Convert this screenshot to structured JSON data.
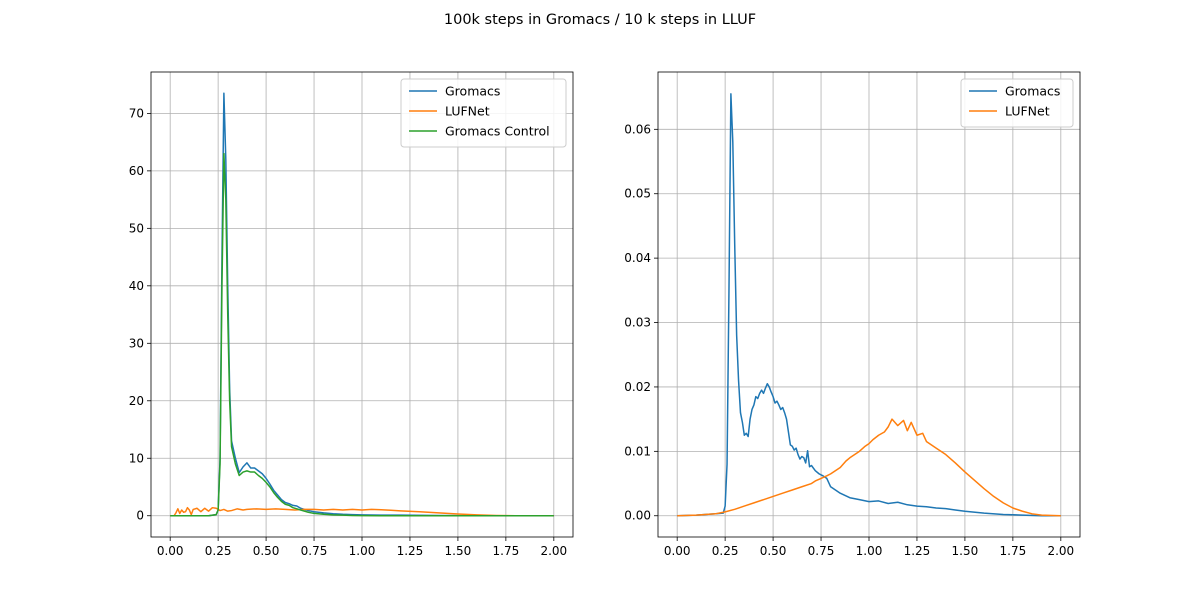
{
  "figure": {
    "title": "100k steps in Gromacs / 10 k steps in LLUF"
  },
  "chart_data": [
    {
      "type": "line",
      "title": "",
      "xlabel": "",
      "ylabel": "",
      "xlim": [
        -0.1,
        2.1
      ],
      "ylim": [
        -3.7,
        77.2
      ],
      "xticks": [
        0.0,
        0.25,
        0.5,
        0.75,
        1.0,
        1.25,
        1.5,
        1.75,
        2.0
      ],
      "xtick_labels": [
        "0.00",
        "0.25",
        "0.50",
        "0.75",
        "1.00",
        "1.25",
        "1.50",
        "1.75",
        "2.00"
      ],
      "yticks": [
        0,
        10,
        20,
        30,
        40,
        50,
        60,
        70
      ],
      "ytick_labels": [
        "0",
        "10",
        "20",
        "30",
        "40",
        "50",
        "60",
        "70"
      ],
      "grid": true,
      "legend_position": "top-right",
      "series": [
        {
          "name": "Gromacs",
          "color": "#1f77b4",
          "x": [
            0.0,
            0.1,
            0.2,
            0.24,
            0.25,
            0.26,
            0.27,
            0.28,
            0.29,
            0.3,
            0.31,
            0.32,
            0.34,
            0.36,
            0.38,
            0.4,
            0.42,
            0.44,
            0.46,
            0.48,
            0.5,
            0.52,
            0.54,
            0.56,
            0.58,
            0.6,
            0.62,
            0.64,
            0.66,
            0.68,
            0.7,
            0.72,
            0.75,
            0.8,
            0.85,
            0.9,
            0.95,
            1.0,
            1.1,
            1.2,
            1.4,
            1.6,
            1.8,
            2.0
          ],
          "y": [
            0,
            0,
            0,
            0.2,
            1.0,
            10.0,
            45.0,
            73.5,
            62.0,
            40.0,
            22.0,
            13.0,
            10.0,
            7.5,
            8.5,
            9.2,
            8.3,
            8.3,
            7.8,
            7.3,
            6.5,
            5.5,
            4.4,
            3.6,
            2.8,
            2.3,
            2.1,
            1.8,
            1.7,
            1.3,
            1.1,
            0.9,
            0.7,
            0.5,
            0.35,
            0.25,
            0.2,
            0.15,
            0.1,
            0.1,
            0.05,
            0.0,
            0.0,
            0.0
          ]
        },
        {
          "name": "LUFNet",
          "color": "#ff7f0e",
          "x": [
            0.0,
            0.02,
            0.03,
            0.04,
            0.05,
            0.06,
            0.07,
            0.08,
            0.09,
            0.1,
            0.11,
            0.12,
            0.14,
            0.16,
            0.18,
            0.2,
            0.22,
            0.24,
            0.26,
            0.28,
            0.3,
            0.32,
            0.35,
            0.38,
            0.4,
            0.45,
            0.5,
            0.55,
            0.6,
            0.65,
            0.7,
            0.75,
            0.8,
            0.85,
            0.9,
            0.95,
            1.0,
            1.05,
            1.1,
            1.15,
            1.2,
            1.3,
            1.4,
            1.5,
            1.6,
            1.7,
            1.8,
            1.9,
            2.0
          ],
          "y": [
            0,
            0,
            0.5,
            1.2,
            0.4,
            1.0,
            0.6,
            0.7,
            1.4,
            1.0,
            0.2,
            1.1,
            1.3,
            0.7,
            1.3,
            0.8,
            1.4,
            1.3,
            0.9,
            1.1,
            0.8,
            0.9,
            1.2,
            1.0,
            1.1,
            1.2,
            1.1,
            1.2,
            1.1,
            1.0,
            1.1,
            1.1,
            1.0,
            1.1,
            1.0,
            1.1,
            1.0,
            1.1,
            1.05,
            0.95,
            0.85,
            0.7,
            0.5,
            0.3,
            0.15,
            0.05,
            0.0,
            0.0,
            0.0
          ]
        },
        {
          "name": "Gromacs Control",
          "color": "#2ca02c",
          "x": [
            0.0,
            0.1,
            0.2,
            0.24,
            0.25,
            0.26,
            0.27,
            0.28,
            0.29,
            0.3,
            0.31,
            0.32,
            0.34,
            0.36,
            0.38,
            0.4,
            0.42,
            0.44,
            0.46,
            0.48,
            0.5,
            0.52,
            0.54,
            0.56,
            0.58,
            0.6,
            0.62,
            0.64,
            0.66,
            0.68,
            0.7,
            0.72,
            0.75,
            0.8,
            0.85,
            0.9,
            0.95,
            1.0,
            1.1,
            1.2,
            1.4,
            1.6,
            1.8,
            2.0
          ],
          "y": [
            0,
            0,
            0,
            0.2,
            1.0,
            9.0,
            40.0,
            63.0,
            55.0,
            35.0,
            20.0,
            12.0,
            9.0,
            7.0,
            7.6,
            7.8,
            7.6,
            7.6,
            7.0,
            6.5,
            5.8,
            5.0,
            4.0,
            3.2,
            2.5,
            2.0,
            1.8,
            1.4,
            1.2,
            1.0,
            0.8,
            0.6,
            0.4,
            0.25,
            0.15,
            0.1,
            0.05,
            0.02,
            0.0,
            0.0,
            0.0,
            0.0,
            0.0,
            0.0
          ]
        }
      ]
    },
    {
      "type": "line",
      "title": "",
      "xlabel": "",
      "ylabel": "",
      "xlim": [
        -0.1,
        2.1
      ],
      "ylim": [
        -0.0033,
        0.0689
      ],
      "xticks": [
        0.0,
        0.25,
        0.5,
        0.75,
        1.0,
        1.25,
        1.5,
        1.75,
        2.0
      ],
      "xtick_labels": [
        "0.00",
        "0.25",
        "0.50",
        "0.75",
        "1.00",
        "1.25",
        "1.50",
        "1.75",
        "2.00"
      ],
      "yticks": [
        0.0,
        0.01,
        0.02,
        0.03,
        0.04,
        0.05,
        0.06
      ],
      "ytick_labels": [
        "0.00",
        "0.01",
        "0.02",
        "0.03",
        "0.04",
        "0.05",
        "0.06"
      ],
      "grid": true,
      "legend_position": "top-right",
      "series": [
        {
          "name": "Gromacs",
          "color": "#1f77b4",
          "x": [
            0.0,
            0.1,
            0.2,
            0.24,
            0.25,
            0.26,
            0.27,
            0.28,
            0.29,
            0.3,
            0.31,
            0.32,
            0.33,
            0.34,
            0.35,
            0.36,
            0.37,
            0.38,
            0.39,
            0.4,
            0.41,
            0.42,
            0.43,
            0.44,
            0.45,
            0.46,
            0.47,
            0.48,
            0.49,
            0.5,
            0.51,
            0.52,
            0.53,
            0.54,
            0.55,
            0.56,
            0.57,
            0.58,
            0.59,
            0.6,
            0.61,
            0.62,
            0.63,
            0.64,
            0.65,
            0.66,
            0.67,
            0.68,
            0.69,
            0.7,
            0.72,
            0.74,
            0.76,
            0.78,
            0.8,
            0.85,
            0.9,
            0.95,
            1.0,
            1.05,
            1.1,
            1.15,
            1.2,
            1.25,
            1.3,
            1.35,
            1.4,
            1.45,
            1.5,
            1.6,
            1.7,
            1.8,
            1.9,
            2.0
          ],
          "y": [
            0.0,
            0.0001,
            0.0003,
            0.0004,
            0.0015,
            0.008,
            0.035,
            0.0655,
            0.058,
            0.042,
            0.028,
            0.021,
            0.016,
            0.0145,
            0.0125,
            0.0128,
            0.0123,
            0.015,
            0.0165,
            0.0172,
            0.0185,
            0.0182,
            0.019,
            0.0195,
            0.019,
            0.0198,
            0.0205,
            0.02,
            0.0192,
            0.0185,
            0.0175,
            0.0178,
            0.0172,
            0.0165,
            0.0168,
            0.016,
            0.015,
            0.013,
            0.011,
            0.0108,
            0.0102,
            0.0105,
            0.0095,
            0.0088,
            0.0092,
            0.009,
            0.0082,
            0.0101,
            0.0076,
            0.0078,
            0.007,
            0.0065,
            0.0062,
            0.0058,
            0.0045,
            0.0035,
            0.0028,
            0.0025,
            0.0022,
            0.0023,
            0.0019,
            0.0021,
            0.0017,
            0.0015,
            0.0014,
            0.0012,
            0.0011,
            0.0009,
            0.0007,
            0.0004,
            0.0002,
            0.0001,
            0.0,
            0.0
          ]
        },
        {
          "name": "LUFNet",
          "color": "#ff7f0e",
          "x": [
            0.0,
            0.1,
            0.2,
            0.25,
            0.3,
            0.35,
            0.4,
            0.45,
            0.5,
            0.55,
            0.6,
            0.65,
            0.7,
            0.72,
            0.75,
            0.78,
            0.8,
            0.85,
            0.88,
            0.9,
            0.95,
            0.98,
            1.0,
            1.02,
            1.05,
            1.08,
            1.1,
            1.12,
            1.15,
            1.18,
            1.2,
            1.22,
            1.25,
            1.28,
            1.3,
            1.35,
            1.4,
            1.45,
            1.5,
            1.55,
            1.6,
            1.65,
            1.7,
            1.75,
            1.8,
            1.85,
            1.9,
            2.0
          ],
          "y": [
            0.0,
            0.0001,
            0.0003,
            0.0006,
            0.001,
            0.0015,
            0.002,
            0.0025,
            0.003,
            0.0035,
            0.004,
            0.0045,
            0.005,
            0.0054,
            0.0058,
            0.0062,
            0.0065,
            0.0075,
            0.0085,
            0.009,
            0.01,
            0.0108,
            0.0112,
            0.0118,
            0.0125,
            0.013,
            0.0138,
            0.015,
            0.014,
            0.0148,
            0.0132,
            0.0145,
            0.0125,
            0.0128,
            0.0115,
            0.0105,
            0.0095,
            0.0082,
            0.0068,
            0.0055,
            0.0042,
            0.003,
            0.002,
            0.0012,
            0.0007,
            0.0003,
            0.0001,
            0.0
          ]
        }
      ]
    }
  ]
}
